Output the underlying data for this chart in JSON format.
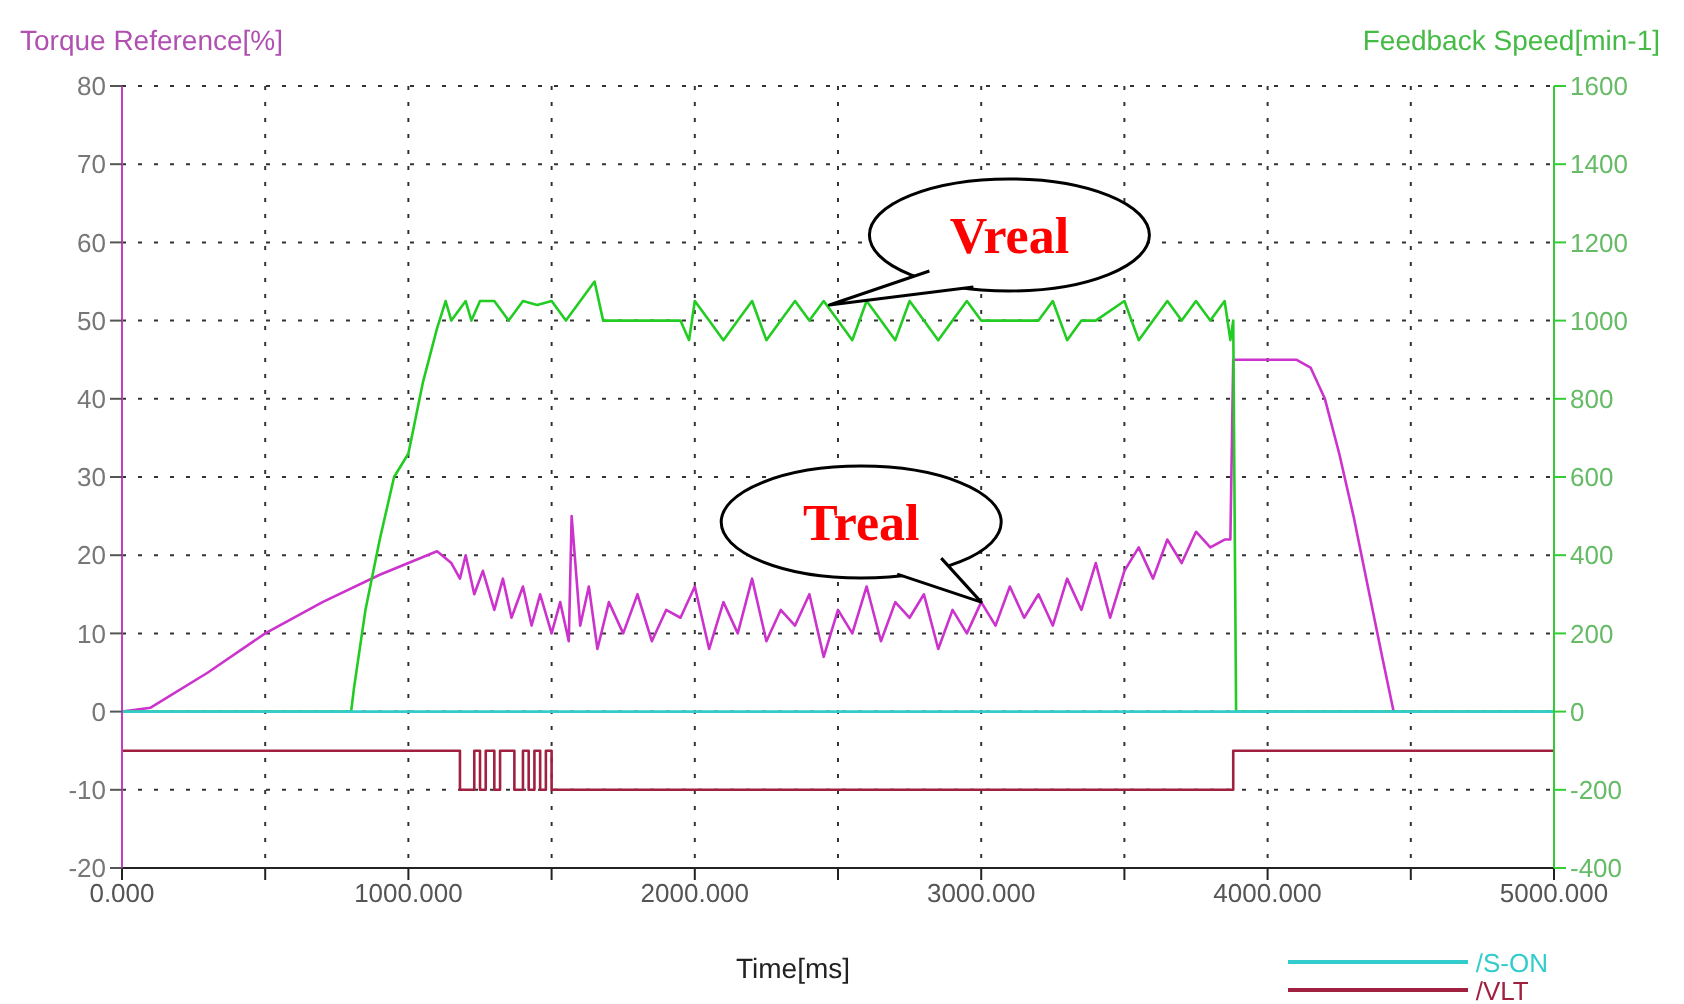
{
  "chart_data": {
    "type": "line",
    "ylabel": "Torque Reference[%]",
    "y2label": "Feedback Speed[min-1]",
    "xlabel": "Time[ms]",
    "xlim": [
      0,
      5000
    ],
    "xticks": [
      {
        "value": 0,
        "label": "0.000"
      },
      {
        "value": 500,
        "label": null
      },
      {
        "value": 1000,
        "label": "1000.000"
      },
      {
        "value": 1500,
        "label": null
      },
      {
        "value": 2000,
        "label": "2000.000"
      },
      {
        "value": 2500,
        "label": null
      },
      {
        "value": 3000,
        "label": "3000.000"
      },
      {
        "value": 3500,
        "label": null
      },
      {
        "value": 4000,
        "label": "4000.000"
      },
      {
        "value": 4500,
        "label": null
      },
      {
        "value": 5000,
        "label": "5000.000"
      }
    ],
    "ylim": [
      -20,
      80
    ],
    "yticks": [
      -20,
      -10,
      0,
      10,
      20,
      30,
      40,
      50,
      60,
      70,
      80
    ],
    "y2lim": [
      -400,
      1600
    ],
    "y2ticks": [
      -400,
      -200,
      0,
      200,
      400,
      600,
      800,
      1000,
      1200,
      1400,
      1600
    ],
    "grid": true,
    "legend": "bottom right",
    "series": [
      {
        "color": "#cc33cc",
        "x": [
          0,
          100,
          300,
          500,
          700,
          900,
          1000,
          1100,
          1150,
          1180,
          1200,
          1230,
          1260,
          1300,
          1330,
          1360,
          1400,
          1430,
          1460,
          1500,
          1530,
          1560,
          1570,
          1600,
          1630,
          1660,
          1700,
          1750,
          1800,
          1850,
          1900,
          1950,
          2000,
          2050,
          2100,
          2150,
          2200,
          2250,
          2300,
          2350,
          2400,
          2450,
          2500,
          2550,
          2600,
          2650,
          2700,
          2750,
          2800,
          2850,
          2900,
          2950,
          3000,
          3050,
          3100,
          3150,
          3200,
          3250,
          3300,
          3350,
          3400,
          3450,
          3500,
          3550,
          3600,
          3650,
          3700,
          3750,
          3800,
          3850,
          3870,
          3880,
          3900,
          4000,
          4100,
          4150,
          4200,
          4250,
          4300,
          4350,
          4400,
          4440
        ],
        "values": [
          0,
          0.5,
          5,
          10,
          14,
          17.5,
          19,
          20.5,
          19,
          17,
          20,
          15,
          18,
          13,
          17,
          12,
          16,
          11,
          15,
          10,
          14,
          9,
          25,
          11,
          16,
          8,
          14,
          10,
          15,
          9,
          13,
          12,
          16,
          8,
          14,
          10,
          17,
          9,
          13,
          11,
          15,
          7,
          13,
          10,
          16,
          9,
          14,
          12,
          15,
          8,
          13,
          10,
          14,
          11,
          16,
          12,
          15,
          11,
          17,
          13,
          19,
          12,
          18,
          21,
          17,
          22,
          19,
          23,
          21,
          22,
          22,
          45,
          45,
          45,
          45,
          44,
          40,
          33,
          25,
          16,
          7,
          0
        ]
      },
      {
        "color": "#22cc22",
        "axis": "y2",
        "x": [
          0,
          800,
          810,
          850,
          900,
          950,
          1000,
          1050,
          1100,
          1130,
          1150,
          1200,
          1220,
          1250,
          1300,
          1350,
          1400,
          1450,
          1500,
          1550,
          1600,
          1650,
          1680,
          1700,
          1750,
          1800,
          1900,
          1950,
          1980,
          2000,
          2050,
          2100,
          2150,
          2200,
          2250,
          2300,
          2350,
          2400,
          2450,
          2500,
          2550,
          2600,
          2650,
          2700,
          2750,
          2800,
          2850,
          2900,
          2950,
          3000,
          3100,
          3200,
          3250,
          3300,
          3350,
          3400,
          3500,
          3550,
          3600,
          3650,
          3700,
          3750,
          3800,
          3850,
          3870,
          3880,
          3890,
          5000
        ],
        "values": [
          0,
          0,
          60,
          260,
          440,
          600,
          660,
          840,
          980,
          1050,
          1000,
          1050,
          1000,
          1050,
          1050,
          1000,
          1050,
          1040,
          1050,
          1000,
          1050,
          1100,
          1000,
          1000,
          1000,
          1000,
          1000,
          1000,
          950,
          1050,
          1000,
          950,
          1000,
          1050,
          950,
          1000,
          1050,
          1000,
          1050,
          1000,
          950,
          1050,
          1000,
          950,
          1050,
          1000,
          950,
          1000,
          1050,
          1000,
          1000,
          1000,
          1050,
          950,
          1000,
          1000,
          1050,
          950,
          1000,
          1050,
          1000,
          1050,
          1000,
          1050,
          950,
          1000,
          0,
          0
        ]
      },
      {
        "name": "/S-ON",
        "color": "#33cccc",
        "x": [
          0,
          5000
        ],
        "values": [
          0,
          0
        ]
      },
      {
        "name": "/VLT",
        "color": "#a02040",
        "x": [
          0,
          1180,
          1180,
          1230,
          1230,
          1250,
          1250,
          1270,
          1270,
          1300,
          1300,
          1320,
          1320,
          1370,
          1370,
          1400,
          1400,
          1420,
          1420,
          1440,
          1440,
          1460,
          1460,
          1480,
          1480,
          1500,
          1500,
          3880,
          3880,
          5000
        ],
        "values": [
          -5,
          -5,
          -10,
          -10,
          -5,
          -5,
          -10,
          -10,
          -5,
          -5,
          -10,
          -10,
          -5,
          -5,
          -10,
          -10,
          -5,
          -5,
          -10,
          -10,
          -5,
          -5,
          -10,
          -10,
          -5,
          -5,
          -10,
          -10,
          -5,
          -5
        ]
      }
    ],
    "annotations": [
      {
        "text": "Vreal",
        "x": 2470,
        "y": 52
      },
      {
        "text": "Treal",
        "x": 3000,
        "y": 14
      }
    ]
  }
}
